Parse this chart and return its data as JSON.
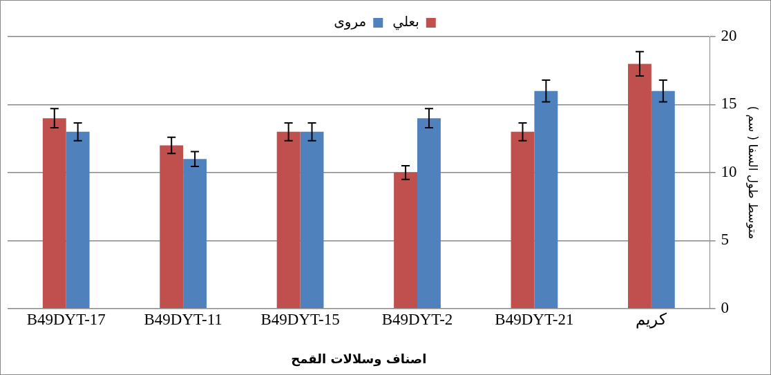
{
  "chart_data": {
    "type": "bar",
    "xlabel": "اصناف وسلالات القمح",
    "ylabel": "متوسط طول السفا ( سم )",
    "categories": [
      "B49DYT-17",
      "B49DYT-11",
      "B49DYT-15",
      "B49DYT-2",
      "B49DYT-21",
      "كريم"
    ],
    "series": [
      {
        "name": "بعلي",
        "color": "#c0504d",
        "values": [
          14,
          12,
          13,
          10,
          13,
          18
        ],
        "errors": [
          0.7,
          0.6,
          0.65,
          0.5,
          0.65,
          0.9
        ]
      },
      {
        "name": "مروى",
        "color": "#4f81bd",
        "values": [
          13,
          11,
          13,
          14,
          16,
          16
        ],
        "errors": [
          0.65,
          0.55,
          0.65,
          0.7,
          0.8,
          0.8
        ]
      }
    ],
    "ylim": [
      0,
      20
    ],
    "yticks": [
      0,
      5,
      10,
      15,
      20
    ],
    "grid": "y",
    "legend": "top"
  }
}
